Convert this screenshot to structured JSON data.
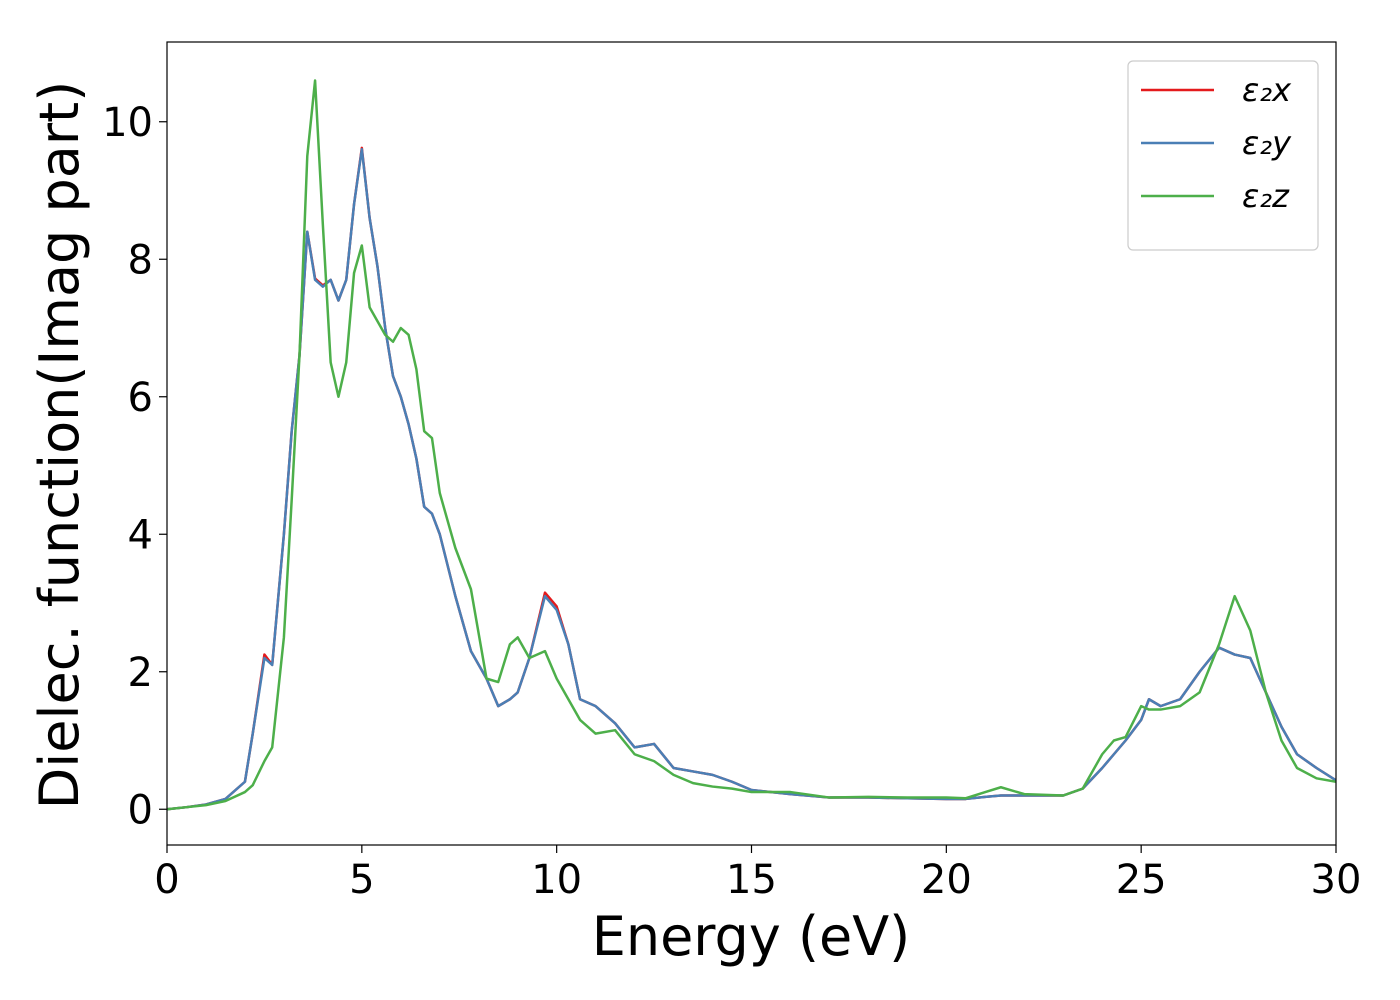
{
  "chart_data": {
    "type": "line",
    "xlabel": "Energy (eV)",
    "ylabel": "Dielec. function(Imag part)",
    "x": [
      0,
      0.5,
      1,
      1.5,
      2,
      2.2,
      2.5,
      2.7,
      3,
      3.2,
      3.4,
      3.6,
      3.8,
      4,
      4.2,
      4.4,
      4.6,
      4.8,
      5,
      5.2,
      5.4,
      5.6,
      5.8,
      6,
      6.2,
      6.4,
      6.6,
      6.8,
      7,
      7.4,
      7.8,
      8.2,
      8.5,
      8.8,
      9,
      9.3,
      9.7,
      10,
      10.3,
      10.6,
      11,
      11.5,
      12,
      12.5,
      13,
      13.5,
      14,
      14.5,
      15,
      16,
      17,
      18,
      19,
      20,
      20.5,
      21,
      21.4,
      22,
      23,
      23.5,
      24,
      24.3,
      24.6,
      25,
      25.2,
      25.5,
      26,
      26.5,
      27,
      27.4,
      27.8,
      28.2,
      28.6,
      29,
      29.5,
      30
    ],
    "series": [
      {
        "name": "ε₂x",
        "color": "#e41a1c",
        "values": [
          0,
          0.03,
          0.07,
          0.15,
          0.4,
          1.1,
          2.25,
          2.1,
          4.0,
          5.5,
          6.6,
          8.4,
          7.72,
          7.62,
          7.7,
          7.4,
          7.7,
          8.8,
          9.62,
          8.6,
          7.9,
          7.0,
          6.3,
          6.0,
          5.6,
          5.1,
          4.4,
          4.3,
          4.0,
          3.1,
          2.3,
          1.9,
          1.5,
          1.6,
          1.7,
          2.2,
          3.15,
          2.95,
          2.4,
          1.6,
          1.5,
          1.25,
          0.9,
          0.95,
          0.6,
          0.55,
          0.5,
          0.4,
          0.28,
          0.22,
          0.17,
          0.17,
          0.16,
          0.15,
          0.15,
          0.18,
          0.2,
          0.2,
          0.2,
          0.3,
          0.6,
          0.8,
          1.0,
          1.3,
          1.6,
          1.5,
          1.6,
          2.0,
          2.35,
          2.25,
          2.2,
          1.7,
          1.2,
          0.8,
          0.6,
          0.42
        ]
      },
      {
        "name": "ε₂y",
        "color": "#4a7fb5",
        "values": [
          0,
          0.03,
          0.07,
          0.15,
          0.4,
          1.1,
          2.2,
          2.1,
          4.0,
          5.5,
          6.6,
          8.4,
          7.7,
          7.6,
          7.7,
          7.4,
          7.7,
          8.8,
          9.6,
          8.6,
          7.9,
          7.0,
          6.3,
          6.0,
          5.6,
          5.1,
          4.4,
          4.3,
          4.0,
          3.1,
          2.3,
          1.9,
          1.5,
          1.6,
          1.7,
          2.2,
          3.1,
          2.9,
          2.4,
          1.6,
          1.5,
          1.25,
          0.9,
          0.95,
          0.6,
          0.55,
          0.5,
          0.4,
          0.28,
          0.22,
          0.17,
          0.17,
          0.16,
          0.15,
          0.15,
          0.18,
          0.2,
          0.2,
          0.2,
          0.3,
          0.6,
          0.8,
          1.0,
          1.3,
          1.6,
          1.5,
          1.6,
          2.0,
          2.35,
          2.25,
          2.2,
          1.7,
          1.2,
          0.8,
          0.6,
          0.42
        ]
      },
      {
        "name": "ε₂z",
        "color": "#4daf4a",
        "values": [
          0,
          0.03,
          0.06,
          0.12,
          0.25,
          0.35,
          0.7,
          0.9,
          2.5,
          4.5,
          6.6,
          9.5,
          10.6,
          8.5,
          6.5,
          6.0,
          6.5,
          7.8,
          8.2,
          7.3,
          7.1,
          6.9,
          6.8,
          7.0,
          6.9,
          6.4,
          5.5,
          5.4,
          4.6,
          3.8,
          3.2,
          1.9,
          1.85,
          2.4,
          2.5,
          2.2,
          2.3,
          1.9,
          1.6,
          1.3,
          1.1,
          1.15,
          0.8,
          0.7,
          0.5,
          0.38,
          0.33,
          0.3,
          0.25,
          0.25,
          0.17,
          0.18,
          0.17,
          0.17,
          0.16,
          0.25,
          0.32,
          0.22,
          0.2,
          0.3,
          0.8,
          1.0,
          1.05,
          1.5,
          1.45,
          1.45,
          1.5,
          1.7,
          2.4,
          3.1,
          2.6,
          1.7,
          1.0,
          0.6,
          0.45,
          0.4
        ]
      }
    ],
    "xlim": [
      0,
      30
    ],
    "xticks": [
      0,
      5,
      10,
      15,
      20,
      25,
      30
    ],
    "ylim": [
      -0.52,
      11.16
    ],
    "yticks": [
      0,
      2,
      4,
      6,
      8,
      10
    ],
    "legend": "upper right",
    "grid": false
  }
}
